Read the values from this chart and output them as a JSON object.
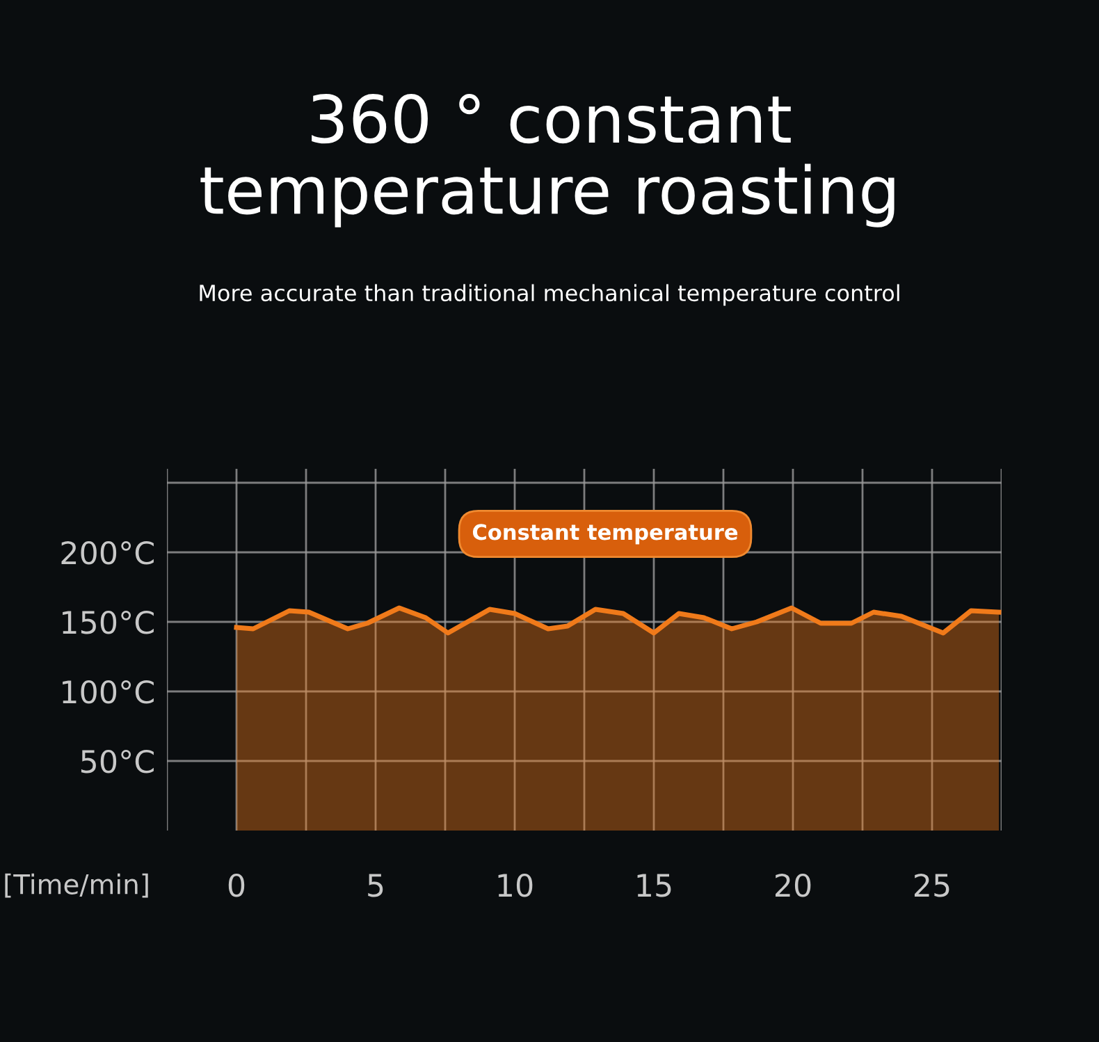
{
  "chart_data": {
    "type": "area",
    "title": "360 ° constant\ntemperature roasting",
    "subtitle": "More accurate than traditional mechanical temperature control",
    "xlabel": "[Time/min]",
    "annotations": [
      "Constant temperature"
    ],
    "series": [
      {
        "color": "#f07a1a",
        "x": [
          0,
          0.6,
          1.9,
          2.6,
          4.0,
          4.7,
          5.85,
          6.8,
          7.6,
          9.1,
          10.0,
          11.2,
          11.9,
          12.9,
          13.9,
          15.0,
          15.9,
          16.8,
          17.8,
          18.7,
          19.95,
          21.0,
          22.1,
          22.9,
          23.9,
          25.4,
          26.4,
          27.4
        ],
        "values": [
          146,
          145,
          158,
          157,
          145,
          149,
          160,
          153,
          142,
          159,
          156,
          145,
          147,
          159,
          156,
          142,
          156,
          153,
          145,
          150,
          160,
          149,
          149,
          157,
          154,
          142,
          158,
          157
        ]
      }
    ],
    "xlim": [
      -2.5,
      27.5
    ],
    "xticks": [
      {
        "value": -2.5,
        "label": null
      },
      0,
      {
        "value": 2.5,
        "label": null
      },
      5,
      {
        "value": 7.5,
        "label": null
      },
      10,
      {
        "value": 12.5,
        "label": null
      },
      15,
      {
        "value": 17.5,
        "label": null
      },
      20,
      {
        "value": 22.5,
        "label": null
      },
      25,
      {
        "value": 27.5,
        "label": null
      }
    ],
    "ylim": [
      0,
      260
    ],
    "yticks": [
      {
        "value": 50,
        "label": "50°C"
      },
      {
        "value": 100,
        "label": "100°C"
      },
      {
        "value": 150,
        "label": "150°C"
      },
      {
        "value": 200,
        "label": "200°C"
      },
      {
        "value": 250,
        "label": null
      }
    ],
    "grid": true
  }
}
